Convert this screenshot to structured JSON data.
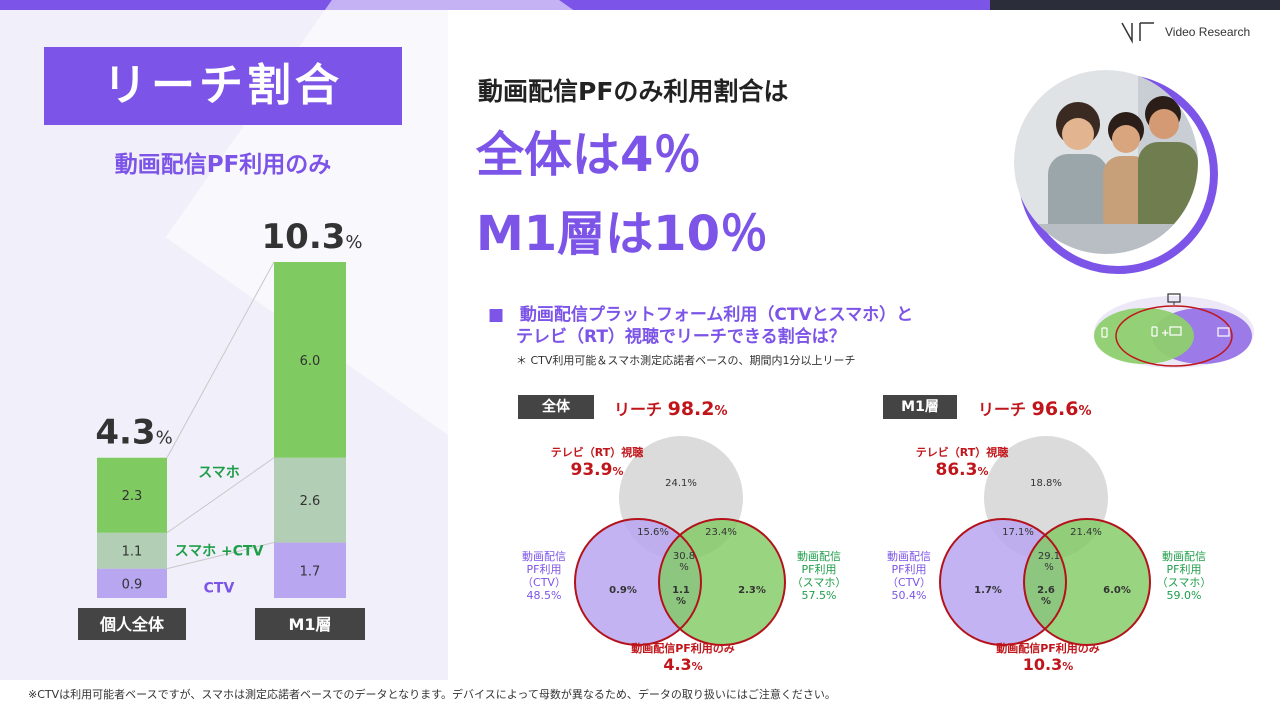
{
  "header": {
    "title": "リーチ割合",
    "subtitle": "動画配信PF利用のみ",
    "headline_lead": "動画配信PFのみ利用割合は",
    "headline_total": "全体は4％",
    "headline_m1": "M1層は10％",
    "logo_text": "Video Research"
  },
  "section": {
    "title_line1": "動画配信プラットフォーム利用（CTVとスマホ）と",
    "title_line2": "テレビ（RT）視聴でリーチできる割合は？",
    "note": "＊ CTV利用可能＆スマホ測定応諾者ベースの、期間内1分以上リーチ"
  },
  "footnote": "※CTVは利用可能者ベースですが、スマホは測定応諾者ベースでのデータとなります。デバイスによって母数が異なるため、データの取り扱いにはご注意ください。",
  "colors": {
    "accent": "#7c54e8",
    "smartphone": "#7fcb62",
    "smartphone_ctv": "#b2ceb4",
    "ctv": "#b8a6f0",
    "tv": "#d9d9d9",
    "reach_red": "#c0161b",
    "green_text": "#1f9e4a"
  },
  "icons": [
    "monitor-icon",
    "smartphone-icon",
    "tv-icon"
  ],
  "legend_diagram": {
    "plus_label": "+"
  },
  "chart_data": [
    {
      "type": "bar",
      "stacked": true,
      "categories": [
        "個人全体",
        "M1層"
      ],
      "series": [
        {
          "name": "CTV",
          "values": [
            0.9,
            1.7
          ]
        },
        {
          "name": "スマホ +CTV",
          "values": [
            1.1,
            2.6
          ]
        },
        {
          "name": "スマホ",
          "values": [
            2.3,
            6.0
          ]
        }
      ],
      "totals": [
        "4.3",
        "10.3"
      ],
      "total_unit": "%",
      "value_labels": [
        [
          "0.9",
          "1.1",
          "2.3"
        ],
        [
          "1.7",
          "2.6",
          "6.0"
        ]
      ],
      "ylim": [
        0,
        10.3
      ]
    },
    {
      "type": "venn",
      "panel_label": "全体",
      "reach_label": "リーチ",
      "reach_value": "98.2",
      "unit": "%",
      "sets": [
        {
          "name": "テレビ（RT）視聴",
          "total": "93.9"
        },
        {
          "name_lines": [
            "動画配信",
            "PF利用",
            "（CTV）"
          ],
          "total": "48.5"
        },
        {
          "name_lines": [
            "動画配信",
            "PF利用",
            "（スマホ）"
          ],
          "total": "57.5"
        }
      ],
      "regions": {
        "tv_only": "24.1%",
        "tv_ctv": "15.6%",
        "tv_smartphone": "23.4%",
        "all_three_line1": "30.8",
        "all_three_line2": "%",
        "ctv_only": "0.9%",
        "ctv_smartphone_line1": "1.1",
        "ctv_smartphone_line2": "%",
        "smartphone_only": "2.3%"
      },
      "pf_only_label": "動画配信PF利用のみ",
      "pf_only_value": "4.3"
    },
    {
      "type": "venn",
      "panel_label": "M1層",
      "reach_label": "リーチ",
      "reach_value": "96.6",
      "unit": "%",
      "sets": [
        {
          "name": "テレビ（RT）視聴",
          "total": "86.3"
        },
        {
          "name_lines": [
            "動画配信",
            "PF利用",
            "（CTV）"
          ],
          "total": "50.4"
        },
        {
          "name_lines": [
            "動画配信",
            "PF利用",
            "（スマホ）"
          ],
          "total": "59.0"
        }
      ],
      "regions": {
        "tv_only": "18.8%",
        "tv_ctv": "17.1%",
        "tv_smartphone": "21.4%",
        "all_three_line1": "29.1",
        "all_three_line2": "%",
        "ctv_only": "1.7%",
        "ctv_smartphone_line1": "2.6",
        "ctv_smartphone_line2": "%",
        "smartphone_only": "6.0%"
      },
      "pf_only_label": "動画配信PF利用のみ",
      "pf_only_value": "10.3"
    }
  ]
}
